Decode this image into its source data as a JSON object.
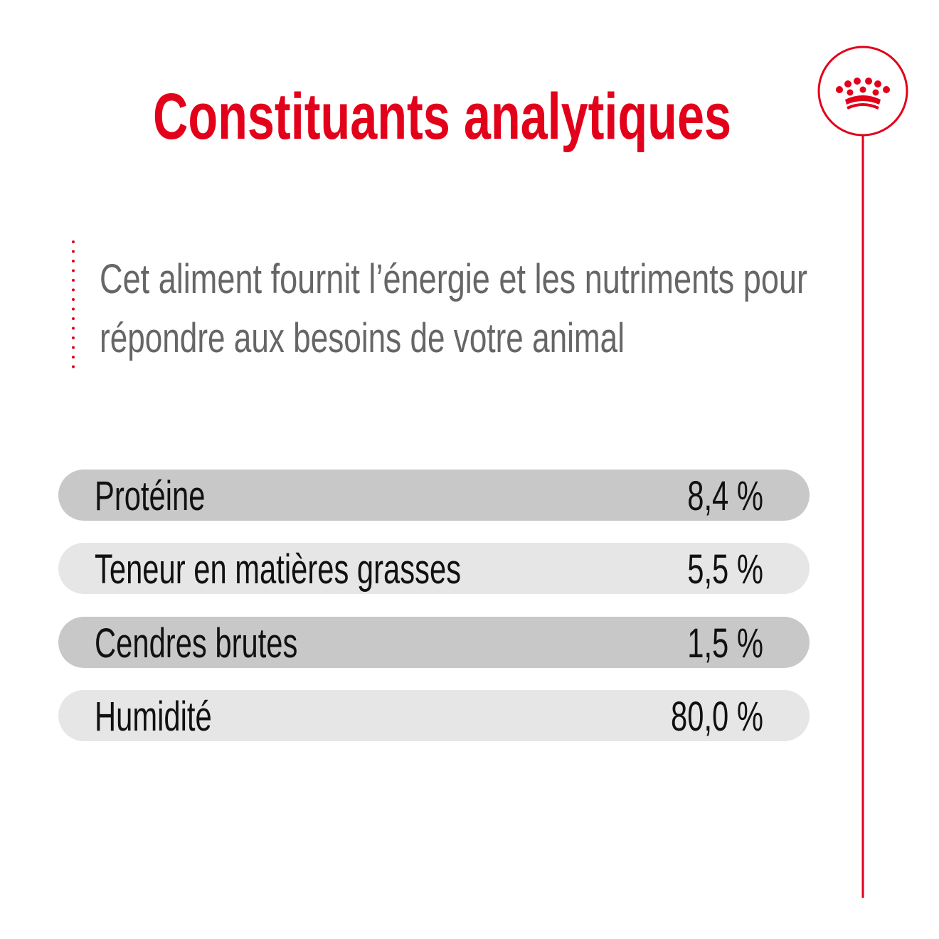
{
  "header": {
    "title": "Constituants analytiques"
  },
  "description": {
    "lines": [
      "Cet aliment fournit l’énergie et les nutriments pour",
      "répondre aux besoins de votre animal"
    ]
  },
  "table": {
    "rows": [
      [
        "Protéine",
        "8,4 %"
      ],
      [
        "Teneur en matières grasses",
        "5,5 %"
      ],
      [
        "Cendres brutes",
        "1,5 %"
      ],
      [
        "Humidité",
        "80,0 %"
      ]
    ]
  }
}
